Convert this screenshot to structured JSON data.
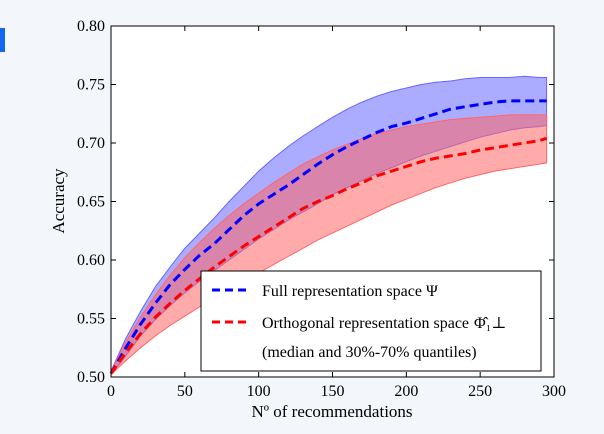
{
  "colors": {
    "page_background": "#f3f6fa",
    "accent": "#1466f0",
    "plot_background": "#ffffff",
    "series_full": "#0000ff",
    "series_orth": "#ff0000",
    "band_full": "#6666ff",
    "band_orth": "#ff6666"
  },
  "chart_data": {
    "type": "line",
    "title": "",
    "xlabel": "Nº of recommendations",
    "ylabel": "Accuracy",
    "xlim": [
      0,
      300
    ],
    "ylim": [
      0.5,
      0.8
    ],
    "xticks": [
      0,
      50,
      100,
      150,
      200,
      250,
      300
    ],
    "yticks": [
      0.5,
      0.55,
      0.6,
      0.65,
      0.7,
      0.75,
      0.8
    ],
    "xtick_labels": [
      "0",
      "50",
      "100",
      "150",
      "200",
      "250",
      "300"
    ],
    "ytick_labels": [
      "0.50",
      "0.55",
      "0.60",
      "0.65",
      "0.70",
      "0.75",
      "0.80"
    ],
    "grid": false,
    "legend_position": "lower-right",
    "legend": {
      "note": "(median and 30%-70% quantiles)"
    },
    "x": [
      0,
      10,
      20,
      30,
      40,
      50,
      60,
      70,
      80,
      90,
      100,
      110,
      120,
      130,
      140,
      150,
      160,
      170,
      180,
      190,
      200,
      210,
      220,
      230,
      240,
      250,
      260,
      270,
      280,
      290,
      295
    ],
    "series": [
      {
        "name": "Full representation space Ψ",
        "line_style": "dashed",
        "color": "#0000ff",
        "values": [
          0.503,
          0.525,
          0.545,
          0.563,
          0.579,
          0.592,
          0.604,
          0.614,
          0.626,
          0.638,
          0.648,
          0.656,
          0.664,
          0.673,
          0.682,
          0.69,
          0.697,
          0.703,
          0.709,
          0.714,
          0.717,
          0.721,
          0.725,
          0.729,
          0.731,
          0.733,
          0.735,
          0.736,
          0.736,
          0.736,
          0.736
        ],
        "lower": [
          0.502,
          0.518,
          0.535,
          0.549,
          0.561,
          0.572,
          0.582,
          0.591,
          0.6,
          0.609,
          0.618,
          0.626,
          0.634,
          0.641,
          0.648,
          0.656,
          0.662,
          0.668,
          0.674,
          0.679,
          0.684,
          0.689,
          0.693,
          0.697,
          0.701,
          0.705,
          0.708,
          0.711,
          0.713,
          0.714,
          0.715
        ],
        "upper": [
          0.505,
          0.533,
          0.556,
          0.577,
          0.594,
          0.61,
          0.623,
          0.636,
          0.65,
          0.663,
          0.676,
          0.687,
          0.697,
          0.706,
          0.714,
          0.722,
          0.729,
          0.735,
          0.74,
          0.744,
          0.747,
          0.75,
          0.752,
          0.753,
          0.755,
          0.756,
          0.756,
          0.756,
          0.757,
          0.756,
          0.756
        ]
      },
      {
        "name": "Orthogonal representation space",
        "name_math": "Φ̂₁⊥",
        "line_style": "dashed",
        "color": "#ff0000",
        "values": [
          0.503,
          0.521,
          0.537,
          0.551,
          0.563,
          0.574,
          0.584,
          0.594,
          0.603,
          0.612,
          0.62,
          0.628,
          0.636,
          0.644,
          0.65,
          0.655,
          0.661,
          0.666,
          0.672,
          0.676,
          0.68,
          0.684,
          0.687,
          0.689,
          0.691,
          0.694,
          0.696,
          0.698,
          0.7,
          0.702,
          0.704
        ],
        "lower": [
          0.502,
          0.514,
          0.525,
          0.535,
          0.544,
          0.552,
          0.56,
          0.567,
          0.575,
          0.582,
          0.589,
          0.596,
          0.603,
          0.61,
          0.617,
          0.623,
          0.629,
          0.635,
          0.641,
          0.647,
          0.652,
          0.657,
          0.662,
          0.666,
          0.67,
          0.673,
          0.676,
          0.678,
          0.68,
          0.682,
          0.683
        ],
        "upper": [
          0.505,
          0.53,
          0.551,
          0.57,
          0.587,
          0.602,
          0.615,
          0.627,
          0.638,
          0.648,
          0.657,
          0.666,
          0.674,
          0.682,
          0.688,
          0.694,
          0.699,
          0.704,
          0.708,
          0.711,
          0.714,
          0.716,
          0.718,
          0.72,
          0.721,
          0.722,
          0.723,
          0.724,
          0.724,
          0.724,
          0.724
        ]
      }
    ]
  }
}
